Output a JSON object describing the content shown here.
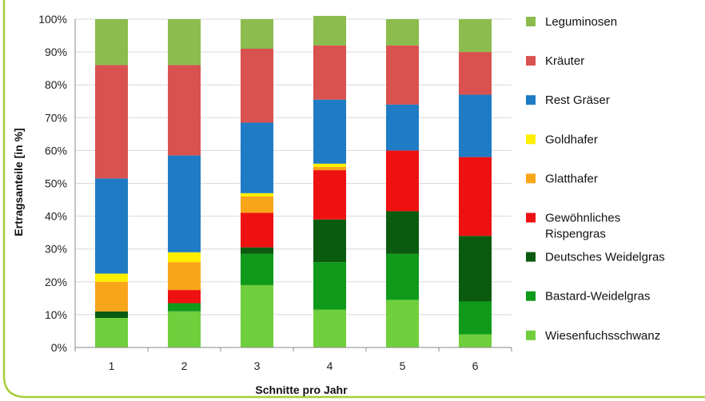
{
  "chart_data": {
    "type": "bar",
    "stacked": true,
    "percent": true,
    "categories": [
      "1",
      "2",
      "3",
      "4",
      "5",
      "6"
    ],
    "xlabel": "Schnitte pro Jahr",
    "ylabel": "Ertragsanteile [in %]",
    "ylim": [
      0,
      100
    ],
    "yticks": [
      "0%",
      "10%",
      "20%",
      "30%",
      "40%",
      "50%",
      "60%",
      "70%",
      "80%",
      "90%",
      "100%"
    ],
    "legend_position": "right",
    "series": [
      {
        "name": "Wiesenfuchsschwanz",
        "color": "#6fcf3c",
        "values": [
          9,
          11,
          19,
          11.5,
          14.5,
          4
        ]
      },
      {
        "name": "Bastard-Weidelgras",
        "color": "#0f9a1a",
        "values": [
          0,
          2.5,
          9.5,
          14.5,
          14,
          10
        ]
      },
      {
        "name": "Deutsches Weidelgras",
        "color": "#0a5b0f",
        "values": [
          2,
          0,
          2,
          13,
          13,
          20
        ]
      },
      {
        "name": "Gewöhnliches Rispengras",
        "color": "#ee1111",
        "values": [
          0,
          4,
          10.5,
          15,
          18.5,
          24
        ]
      },
      {
        "name": "Glatthafer",
        "color": "#f9a51a",
        "values": [
          9,
          8.5,
          5,
          1,
          0,
          0
        ]
      },
      {
        "name": "Goldhafer",
        "color": "#ffee00",
        "values": [
          2.5,
          3,
          1,
          1,
          0,
          0
        ]
      },
      {
        "name": "Rest Gräser",
        "color": "#1f7cc4",
        "values": [
          29,
          29.5,
          21.5,
          19.5,
          14,
          19
        ]
      },
      {
        "name": "Kräuter",
        "color": "#d9524f",
        "values": [
          34.5,
          27.5,
          22.5,
          16.5,
          18,
          13
        ]
      },
      {
        "name": "Leguminosen",
        "color": "#8cbc4e",
        "values": [
          14,
          14,
          9,
          9,
          8,
          10
        ]
      }
    ],
    "legend_order": [
      "Leguminosen",
      "Kräuter",
      "Rest Gräser",
      "Goldhafer",
      "Glatthafer",
      "Gewöhnliches Rispengras",
      "Deutsches Weidelgras",
      "Bastard-Weidelgras",
      "Wiesenfuchsschwanz"
    ],
    "frame_color": "#a6ce39"
  }
}
